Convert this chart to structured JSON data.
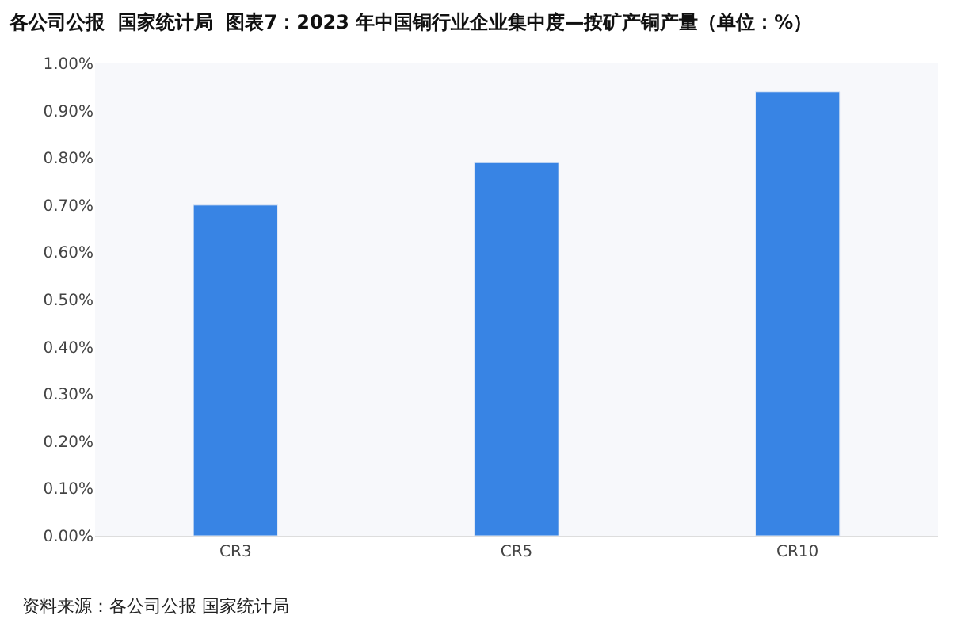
{
  "chart_data": {
    "type": "bar",
    "title": "各公司公报  国家统计局  图表7：2023 年中国铜行业企业集中度—按矿产铜产量（单位：%）",
    "categories": [
      "CR3",
      "CR5",
      "CR10"
    ],
    "values": [
      0.7,
      0.79,
      0.94
    ],
    "color": "#3884e4",
    "ylim": [
      0,
      1.0
    ],
    "yticks": [
      {
        "value": 0,
        "label": "0.00%"
      },
      {
        "value": 0.1,
        "label": "0.10%"
      },
      {
        "value": 0.2,
        "label": "0.20%"
      },
      {
        "value": 0.3,
        "label": "0.30%"
      },
      {
        "value": 0.4,
        "label": "0.40%"
      },
      {
        "value": 0.5,
        "label": "0.50%"
      },
      {
        "value": 0.6,
        "label": "0.60%"
      },
      {
        "value": 0.7,
        "label": "0.70%"
      },
      {
        "value": 0.8,
        "label": "0.80%"
      },
      {
        "value": 0.9,
        "label": "0.90%"
      },
      {
        "value": 1.0,
        "label": "1.00%"
      }
    ],
    "grid": false,
    "annotations": [
      "资料来源：各公司公报 国家统计局"
    ]
  }
}
